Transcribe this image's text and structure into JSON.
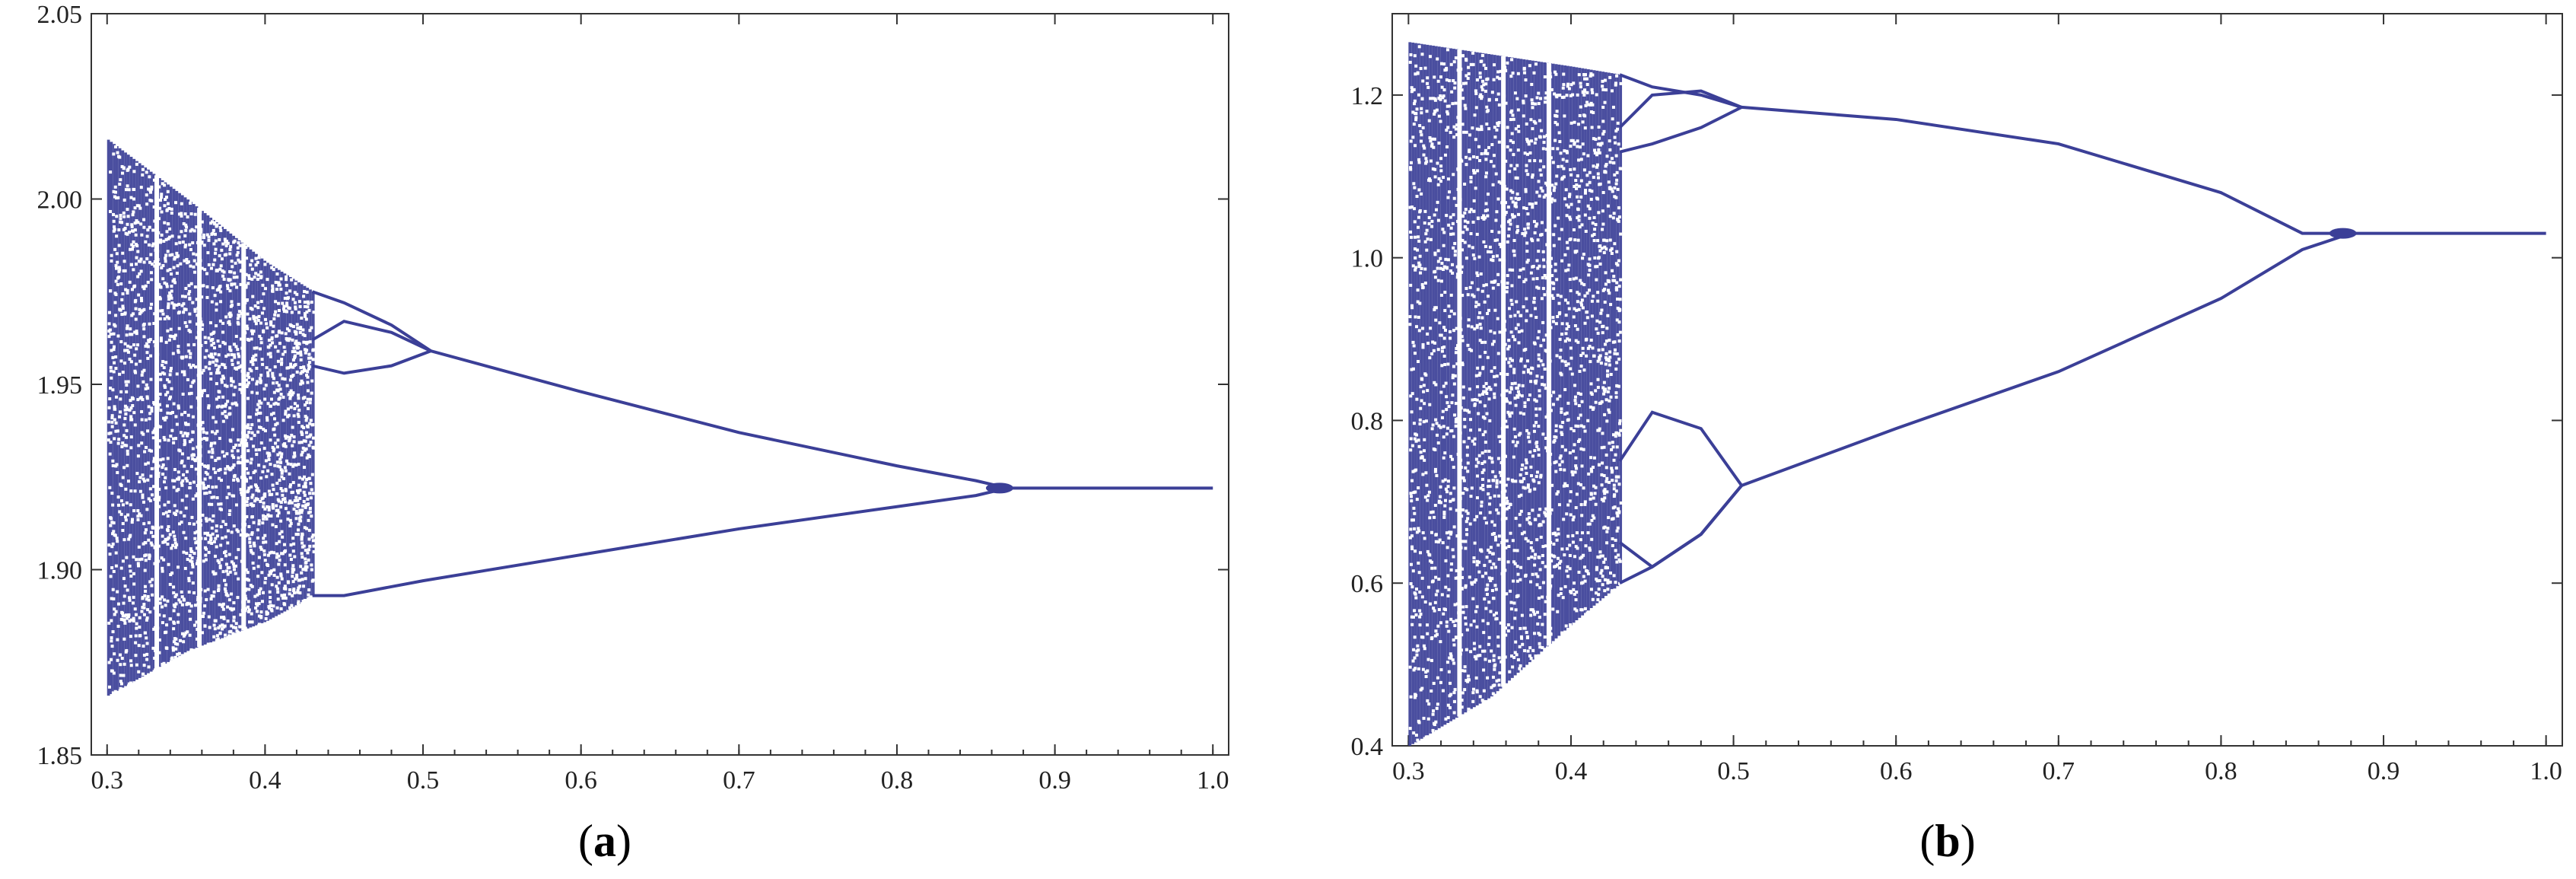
{
  "colors": {
    "series": "#3b3f97",
    "axis": "#333333",
    "background": "#ffffff"
  },
  "chart_data": [
    {
      "type": "scatter",
      "panel_label": "a",
      "title": "",
      "xlabel": "",
      "ylabel": "",
      "xlim": [
        0.29,
        1.01
      ],
      "ylim": [
        1.85,
        2.05
      ],
      "xticks": [
        0.3,
        0.4,
        0.5,
        0.6,
        0.7,
        0.8,
        0.9,
        1.0
      ],
      "xtick_labels": [
        "0.3",
        "0.4",
        "0.5",
        "0.6",
        "0.7",
        "0.8",
        "0.9",
        "1.0"
      ],
      "yticks": [
        1.85,
        1.9,
        1.95,
        2.0,
        2.05
      ],
      "ytick_labels": [
        "1.85",
        "1.90",
        "1.95",
        "2.00",
        "2.05"
      ],
      "grid": false,
      "chaos_band": {
        "x": [
          0.3,
          0.35,
          0.4,
          0.43
        ],
        "upper": [
          2.016,
          2.0,
          1.983,
          1.975
        ],
        "lower": [
          1.866,
          1.878,
          1.886,
          1.893
        ]
      },
      "upper_branch": {
        "x": [
          0.43,
          0.45,
          0.48,
          0.505,
          0.6,
          0.7,
          0.8,
          0.85,
          0.87
        ],
        "y": [
          1.975,
          1.972,
          1.966,
          1.959,
          1.948,
          1.937,
          1.928,
          1.924,
          1.922
        ]
      },
      "inner_loop": {
        "x": [
          0.43,
          0.45,
          0.48,
          0.505
        ],
        "upper": [
          1.962,
          1.967,
          1.964,
          1.959
        ],
        "lower": [
          1.955,
          1.953,
          1.955,
          1.959
        ]
      },
      "lower_branch": {
        "x": [
          0.43,
          0.45,
          0.5,
          0.6,
          0.7,
          0.8,
          0.85,
          0.87
        ],
        "y": [
          1.893,
          1.893,
          1.897,
          1.904,
          1.911,
          1.917,
          1.92,
          1.922
        ]
      },
      "fixed_point": {
        "x": [
          0.87,
          1.0
        ],
        "y": [
          1.922,
          1.922
        ]
      }
    },
    {
      "type": "scatter",
      "panel_label": "b",
      "title": "",
      "xlabel": "",
      "ylabel": "",
      "xlim": [
        0.29,
        1.01
      ],
      "ylim": [
        0.4,
        1.3
      ],
      "xticks": [
        0.3,
        0.4,
        0.5,
        0.6,
        0.7,
        0.8,
        0.9,
        1.0
      ],
      "xtick_labels": [
        "0.3",
        "0.4",
        "0.5",
        "0.6",
        "0.7",
        "0.8",
        "0.9",
        "1.0"
      ],
      "yticks": [
        0.4,
        0.6,
        0.8,
        1.0,
        1.2
      ],
      "ytick_labels": [
        "0.4",
        "0.6",
        "0.8",
        "1.0",
        "1.2"
      ],
      "grid": false,
      "chaos_band": {
        "x": [
          0.3,
          0.35,
          0.4,
          0.43
        ],
        "upper": [
          1.265,
          1.25,
          1.235,
          1.225
        ],
        "lower": [
          0.4,
          0.46,
          0.55,
          0.6
        ]
      },
      "upper_branch": {
        "x": [
          0.43,
          0.45,
          0.48,
          0.505,
          0.6,
          0.7,
          0.8,
          0.85,
          0.88
        ],
        "y": [
          1.225,
          1.21,
          1.2,
          1.185,
          1.17,
          1.14,
          1.08,
          1.03,
          1.03
        ]
      },
      "lower_branch": {
        "x": [
          0.43,
          0.45,
          0.48,
          0.505,
          0.6,
          0.7,
          0.8,
          0.85,
          0.88
        ],
        "y": [
          0.6,
          0.62,
          0.66,
          0.72,
          0.79,
          0.86,
          0.95,
          1.01,
          1.03
        ]
      },
      "upper_loop": {
        "x": [
          0.43,
          0.45,
          0.48,
          0.505
        ],
        "upper": [
          1.16,
          1.2,
          1.205,
          1.185
        ],
        "lower": [
          1.13,
          1.14,
          1.16,
          1.185
        ]
      },
      "lower_loop": {
        "x": [
          0.43,
          0.45,
          0.48,
          0.505
        ],
        "upper": [
          0.75,
          0.81,
          0.79,
          0.72
        ],
        "lower": [
          0.65,
          0.62,
          0.66,
          0.72
        ]
      },
      "fixed_point": {
        "x": [
          0.88,
          1.0
        ],
        "y": [
          1.03,
          1.03
        ]
      }
    }
  ]
}
